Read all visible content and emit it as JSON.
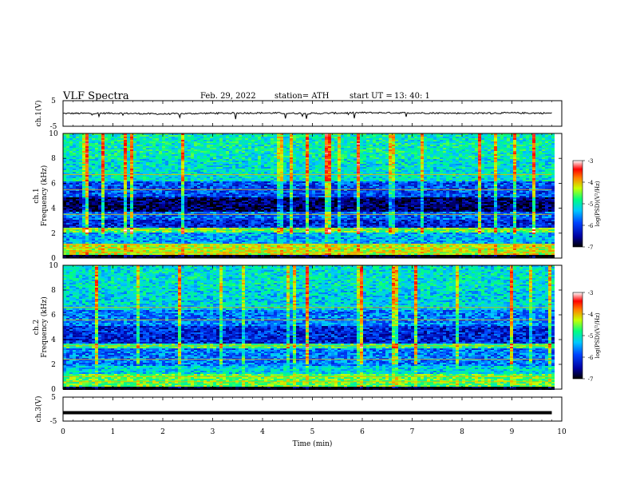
{
  "header": {
    "title": "VLF Spectra",
    "date": "Feb. 29, 2022",
    "station": "station= ATH",
    "start_label": "start  UT  =",
    "start_value": "13: 40: 1"
  },
  "colors": {
    "background": "#ffffff",
    "axes": "#000000",
    "colormap": [
      "#000000",
      "#0000a0",
      "#0044ff",
      "#00c8ff",
      "#00ff80",
      "#c8ff00",
      "#ff8000",
      "#ff0000",
      "#ffffff"
    ]
  },
  "chart_data": [
    {
      "type": "line",
      "ylabel": "ch.1(V)",
      "ylim": [
        -5,
        5
      ],
      "yticks": [
        "5",
        "-5"
      ],
      "xlim": [
        0,
        10
      ],
      "series": [
        {
          "values_note": "",
          "x": [
            0,
            1,
            2,
            3,
            4,
            5,
            6,
            7,
            8,
            9,
            9.8
          ],
          "y": [
            0,
            0.1,
            -0.2,
            0.1,
            0.2,
            0,
            0.3,
            0.2,
            0.1,
            0.2,
            0.1
          ]
        }
      ]
    },
    {
      "type": "heatmap",
      "ylabel": "ch.1\nFrequency  (kHz)",
      "ylim": [
        0,
        10
      ],
      "yticks": [
        "0",
        "2",
        "4",
        "6",
        "8",
        "10"
      ],
      "xlim": [
        0,
        10
      ],
      "data_extent_x": [
        0,
        9.8
      ],
      "colorbar": {
        "label": "log(PSD)(V²/Hz)",
        "range": [
          -7,
          -3
        ],
        "ticks": [
          "-3",
          "-4",
          "-5",
          "-6",
          "-7"
        ]
      },
      "bands": [
        {
          "f": [
            0,
            0.3
          ],
          "level": -7
        },
        {
          "f": [
            0.3,
            1.2
          ],
          "level": -4.5
        },
        {
          "f": [
            1.2,
            2.1
          ],
          "level": -5.6
        },
        {
          "f": [
            2.1,
            2.5
          ],
          "level": -4.8
        },
        {
          "f": [
            2.5,
            3.1
          ],
          "level": -6.2
        },
        {
          "f": [
            3.1,
            3.8
          ],
          "level": -5.9
        },
        {
          "f": [
            3.8,
            5.0
          ],
          "level": -6.7
        },
        {
          "f": [
            5.0,
            6.2
          ],
          "level": -6.0
        },
        {
          "f": [
            6.2,
            8.0
          ],
          "level": -5.3
        },
        {
          "f": [
            8.0,
            10
          ],
          "level": -5.2
        }
      ],
      "lines_khz": [
        0.5,
        0.8,
        1.1,
        2.3,
        3.5,
        5.5,
        6.7
      ]
    },
    {
      "type": "heatmap",
      "ylabel": "ch.2\nFrequency  (kHz)",
      "ylim": [
        0,
        10
      ],
      "yticks": [
        "0",
        "2",
        "4",
        "6",
        "8",
        "10"
      ],
      "xlim": [
        0,
        10
      ],
      "data_extent_x": [
        0,
        9.8
      ],
      "colorbar": {
        "label": "log(PSD)(V²/Hz)",
        "range": [
          -7,
          -3
        ],
        "ticks": [
          "-3",
          "-4",
          "-5",
          "-6",
          "-7"
        ]
      },
      "bands": [
        {
          "f": [
            0,
            0.3
          ],
          "level": -7
        },
        {
          "f": [
            0.3,
            1.3
          ],
          "level": -4.8
        },
        {
          "f": [
            1.3,
            2.0
          ],
          "level": -5.4
        },
        {
          "f": [
            2.0,
            3.3
          ],
          "level": -5.8
        },
        {
          "f": [
            3.3,
            3.8
          ],
          "level": -5.0
        },
        {
          "f": [
            3.8,
            5.2
          ],
          "level": -6.2
        },
        {
          "f": [
            5.2,
            6.5
          ],
          "level": -5.8
        },
        {
          "f": [
            6.5,
            8.0
          ],
          "level": -5.4
        },
        {
          "f": [
            8.0,
            10
          ],
          "level": -5.3
        }
      ],
      "lines_khz": [
        0.6,
        1.0,
        2.4,
        3.5,
        5.6,
        6.6
      ]
    },
    {
      "type": "line",
      "ylabel": "ch.3(V)",
      "ylim": [
        -5,
        5
      ],
      "yticks": [
        "5",
        "-5"
      ],
      "xlim": [
        0,
        10
      ],
      "xlabel": "Time  (min)",
      "xticks": [
        "0",
        "1",
        "2",
        "3",
        "4",
        "5",
        "6",
        "7",
        "8",
        "9",
        "10"
      ],
      "series": [
        {
          "x": [
            0,
            9.8
          ],
          "y": [
            -1.5,
            -1.5
          ]
        }
      ]
    }
  ]
}
